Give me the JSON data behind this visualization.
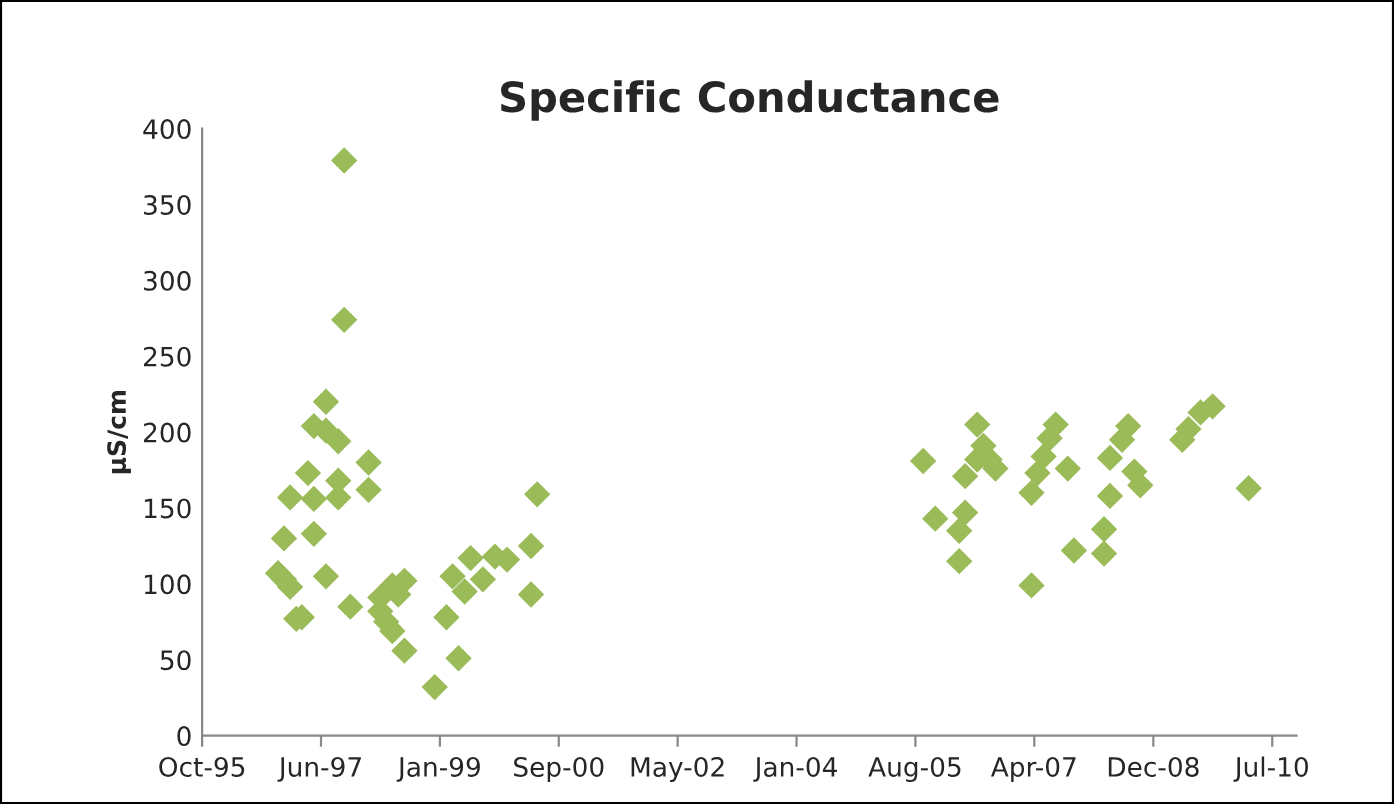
{
  "chart_data": {
    "type": "scatter",
    "title": "Specific Conductance",
    "ylabel": "µS/cm",
    "x": [
      "1996-11",
      "1996-12",
      "1997-01",
      "1997-01",
      "1996-12",
      "1997-02",
      "1997-03",
      "1997-04",
      "1997-05",
      "1997-05",
      "1997-07",
      "1997-07",
      "1997-05",
      "1997-07",
      "1997-09",
      "1997-09",
      "1997-09",
      "1997-10",
      "1997-10",
      "1997-11",
      "1998-02",
      "1998-02",
      "1998-04",
      "1998-04",
      "1998-05",
      "1998-06",
      "1998-07",
      "1998-08",
      "1998-08",
      "1998-06",
      "1999-01",
      "1999-03",
      "1999-04",
      "1999-05",
      "1999-06",
      "1999-07",
      "1999-09",
      "1999-11",
      "2000-01",
      "2000-05",
      "2000-05",
      "2000-06",
      "2005-10",
      "2005-12",
      "2006-05",
      "2006-04",
      "2006-04",
      "2006-07",
      "2006-05",
      "2006-07",
      "2006-09",
      "2006-08",
      "2006-10",
      "2007-04",
      "2007-04",
      "2007-05",
      "2007-06",
      "2007-07",
      "2007-08",
      "2007-10",
      "2007-11",
      "2008-04",
      "2008-04",
      "2008-05",
      "2008-05",
      "2008-07",
      "2008-08",
      "2008-09",
      "2008-10",
      "2009-05",
      "2009-06",
      "2009-08",
      "2009-10",
      "2010-04"
    ],
    "series": [
      {
        "color": "#9bbb59",
        "values": [
          107,
          103,
          98,
          157,
          130,
          77,
          78,
          173,
          156,
          133,
          105,
          220,
          204,
          201,
          194,
          157,
          168,
          379,
          274,
          85,
          180,
          162,
          91,
          82,
          75,
          69,
          93,
          102,
          56,
          99,
          32,
          78,
          105,
          51,
          95,
          117,
          103,
          118,
          116,
          93,
          125,
          159,
          181,
          143,
          147,
          135,
          115,
          205,
          171,
          182,
          182,
          191,
          176,
          99,
          160,
          173,
          184,
          196,
          205,
          176,
          122,
          136,
          120,
          158,
          183,
          195,
          204,
          174,
          165,
          195,
          202,
          213,
          217,
          163
        ]
      }
    ],
    "marker": "diamond",
    "grid": false,
    "legend": false,
    "xlim": [
      "1995-10-15",
      "2010-11-28"
    ],
    "xticks": [
      {
        "value": "1995-10-15",
        "label": "Oct-95"
      },
      {
        "value": "1997-06-06",
        "label": "Jun-97"
      },
      {
        "value": "1999-01-27",
        "label": "Jan-99"
      },
      {
        "value": "2000-09-18",
        "label": "Sep-00"
      },
      {
        "value": "2002-05-11",
        "label": "May-02"
      },
      {
        "value": "2004-01-01",
        "label": "Jan-04"
      },
      {
        "value": "2005-08-23",
        "label": "Aug-05"
      },
      {
        "value": "2007-04-15",
        "label": "Apr-07"
      },
      {
        "value": "2008-12-06",
        "label": "Dec-08"
      },
      {
        "value": "2010-07-29",
        "label": "Jul-10"
      }
    ],
    "ylim": [
      0,
      400
    ],
    "yticks": [
      0,
      50,
      100,
      150,
      200,
      250,
      300,
      350,
      400
    ]
  }
}
